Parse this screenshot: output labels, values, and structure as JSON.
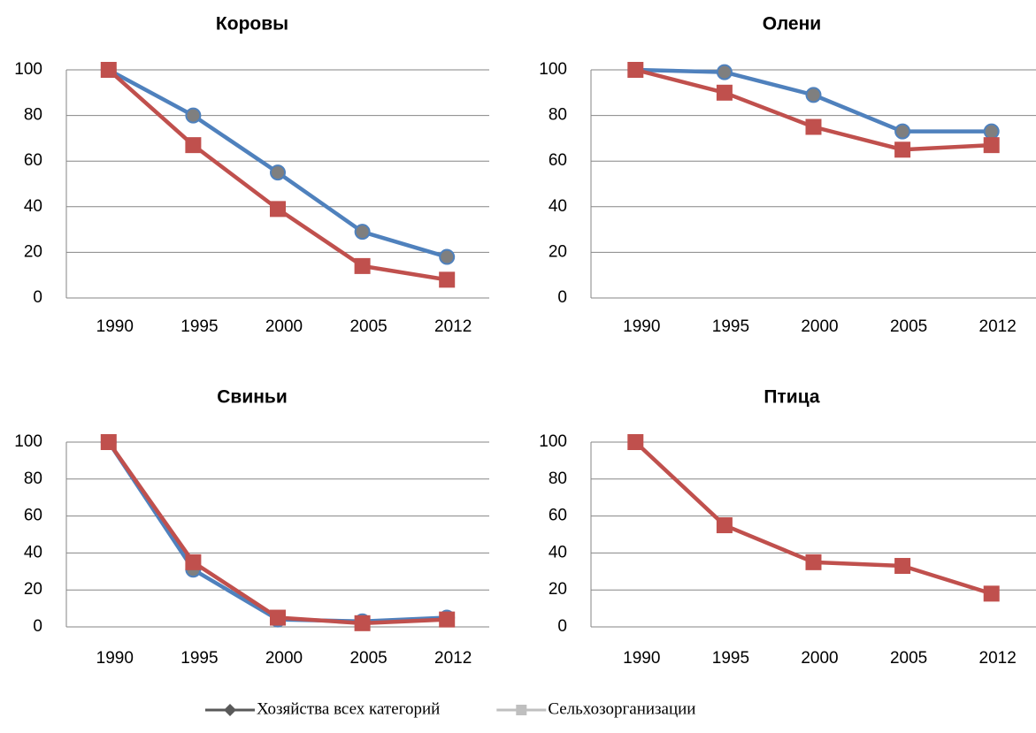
{
  "chart_data": [
    {
      "type": "line",
      "title": "Коровы",
      "categories": [
        "1990",
        "1995",
        "2000",
        "2005",
        "2012"
      ],
      "ylim": [
        0,
        100
      ],
      "yticks": [
        0,
        20,
        40,
        60,
        80,
        100
      ],
      "grid": true,
      "series": [
        {
          "color": "#4f81bd",
          "marker": "circle",
          "marker_color": "#7f7f7f",
          "values": [
            100,
            80,
            55,
            29,
            18
          ]
        },
        {
          "color": "#c0504d",
          "marker": "square",
          "marker_color": "#c0504d",
          "values": [
            100,
            67,
            39,
            14,
            8
          ]
        }
      ]
    },
    {
      "type": "line",
      "title": "Олени",
      "categories": [
        "1990",
        "1995",
        "2000",
        "2005",
        "2012"
      ],
      "ylim": [
        0,
        100
      ],
      "yticks": [
        0,
        20,
        40,
        60,
        80,
        100
      ],
      "grid": true,
      "series": [
        {
          "color": "#4f81bd",
          "marker": "circle",
          "marker_color": "#7f7f7f",
          "values": [
            100,
            99,
            89,
            73,
            73
          ]
        },
        {
          "color": "#c0504d",
          "marker": "square",
          "marker_color": "#c0504d",
          "values": [
            100,
            90,
            75,
            65,
            67
          ]
        }
      ]
    },
    {
      "type": "line",
      "title": "Свиньи",
      "categories": [
        "1990",
        "1995",
        "2000",
        "2005",
        "2012"
      ],
      "ylim": [
        0,
        100
      ],
      "yticks": [
        0,
        20,
        40,
        60,
        80,
        100
      ],
      "grid": true,
      "series": [
        {
          "color": "#4f81bd",
          "marker": "circle",
          "marker_color": "#7f7f7f",
          "values": [
            100,
            31,
            4,
            3,
            5
          ]
        },
        {
          "color": "#c0504d",
          "marker": "square",
          "marker_color": "#c0504d",
          "values": [
            100,
            35,
            5,
            2,
            4
          ]
        }
      ]
    },
    {
      "type": "line",
      "title": "Птица",
      "categories": [
        "1990",
        "1995",
        "2000",
        "2005",
        "2012"
      ],
      "ylim": [
        0,
        100
      ],
      "yticks": [
        0,
        20,
        40,
        60,
        80,
        100
      ],
      "grid": true,
      "series": [
        {
          "color": "#c0504d",
          "marker": "square",
          "marker_color": "#c0504d",
          "values": [
            100,
            55,
            35,
            33,
            18
          ]
        }
      ]
    }
  ],
  "legend": [
    {
      "name": "Хозяйства всех категорий",
      "color": "#595959",
      "marker": "diamond"
    },
    {
      "name": "Сельхозорганизации",
      "color": "#bfbfbf",
      "marker": "square"
    }
  ]
}
